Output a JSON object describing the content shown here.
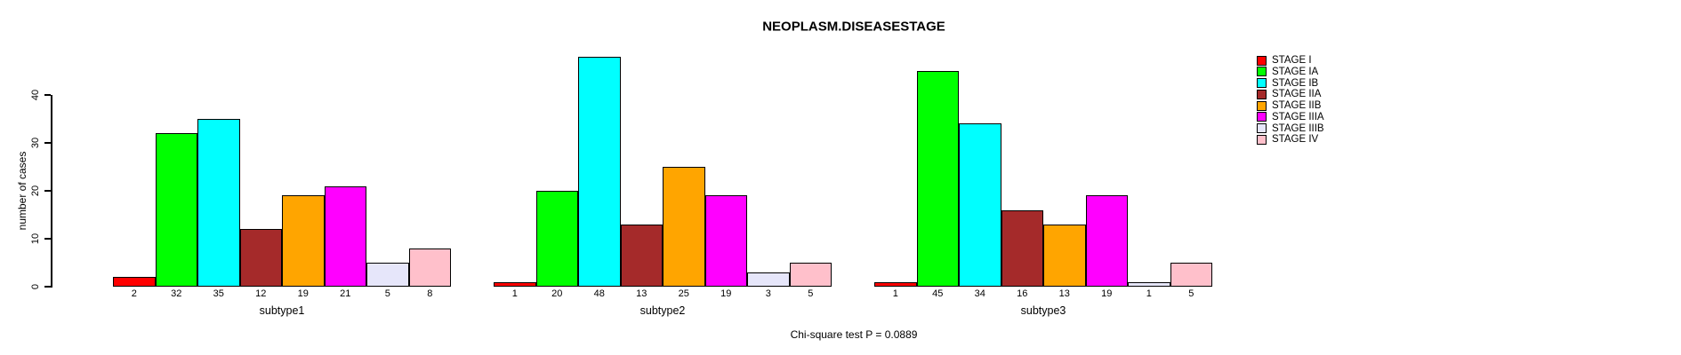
{
  "chart_data": {
    "type": "bar",
    "title": "NEOPLASM.DISEASESTAGE",
    "xlabel": "",
    "ylabel": "number of cases",
    "ylim": [
      0,
      40
    ],
    "yticks": [
      0,
      10,
      20,
      30,
      40
    ],
    "grid": false,
    "legend_position": "right-outside",
    "categories": [
      "STAGE I",
      "STAGE IA",
      "STAGE IB",
      "STAGE IIA",
      "STAGE IIB",
      "STAGE IIIA",
      "STAGE IIIB",
      "STAGE IV"
    ],
    "colors": [
      "#ff0000",
      "#00ff00",
      "#00ffff",
      "#a52a2a",
      "#ffa500",
      "#ff00ff",
      "#e6e6fa",
      "#ffc0cb"
    ],
    "groups": [
      {
        "label": "subtype1",
        "values": [
          2,
          32,
          35,
          12,
          19,
          21,
          5,
          8
        ]
      },
      {
        "label": "subtype2",
        "values": [
          1,
          20,
          48,
          13,
          25,
          19,
          3,
          5
        ]
      },
      {
        "label": "subtype3",
        "values": [
          1,
          45,
          34,
          16,
          13,
          19,
          1,
          5
        ]
      }
    ],
    "bar_value_labels": true,
    "note": "Chi-square test P = 0.0889"
  }
}
